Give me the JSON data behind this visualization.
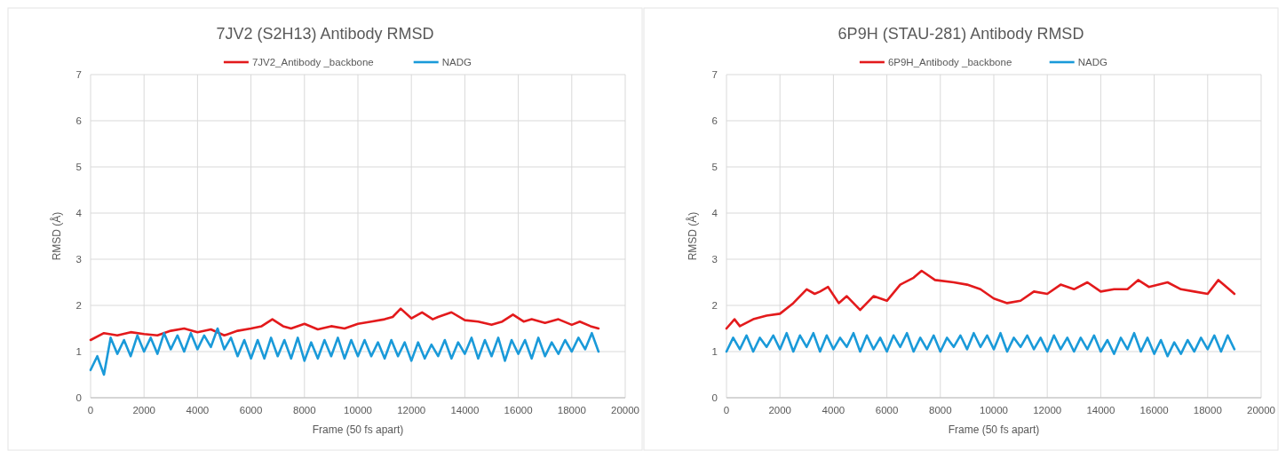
{
  "chart_data": [
    {
      "type": "line",
      "title": "7JV2 (S2H13) Antibody RMSD",
      "xlabel": "Frame (50 fs apart)",
      "ylabel": "RMSD (Å)",
      "xlim": [
        0,
        20000
      ],
      "xticks": [
        0,
        2000,
        4000,
        6000,
        8000,
        10000,
        12000,
        14000,
        16000,
        18000,
        20000
      ],
      "ylim": [
        0,
        7
      ],
      "yticks": [
        0,
        1,
        2,
        3,
        4,
        5,
        6,
        7
      ],
      "grid": true,
      "legend": "top",
      "marker": "none",
      "line_style": "solid",
      "series": [
        {
          "name": "7JV2_Antibody _backbone",
          "color": "#e31a1c",
          "x": [
            0,
            500,
            1000,
            1500,
            2000,
            2500,
            3000,
            3500,
            4000,
            4500,
            5000,
            5500,
            6000,
            6400,
            6800,
            7200,
            7500,
            8000,
            8500,
            9000,
            9500,
            10000,
            10500,
            11000,
            11300,
            11600,
            12000,
            12400,
            12800,
            13000,
            13500,
            14000,
            14500,
            15000,
            15400,
            15800,
            16200,
            16500,
            17000,
            17500,
            18000,
            18300,
            18700,
            19000
          ],
          "values": [
            1.25,
            1.4,
            1.35,
            1.42,
            1.38,
            1.35,
            1.45,
            1.5,
            1.42,
            1.48,
            1.35,
            1.45,
            1.5,
            1.55,
            1.7,
            1.55,
            1.5,
            1.6,
            1.48,
            1.55,
            1.5,
            1.6,
            1.65,
            1.7,
            1.75,
            1.93,
            1.72,
            1.85,
            1.7,
            1.75,
            1.85,
            1.68,
            1.65,
            1.58,
            1.65,
            1.8,
            1.65,
            1.7,
            1.62,
            1.7,
            1.58,
            1.65,
            1.55,
            1.5
          ]
        },
        {
          "name": "NADG",
          "color": "#1a9ad9",
          "x": [
            0,
            250,
            500,
            750,
            1000,
            1250,
            1500,
            1750,
            2000,
            2250,
            2500,
            2750,
            3000,
            3250,
            3500,
            3750,
            4000,
            4250,
            4500,
            4750,
            5000,
            5250,
            5500,
            5750,
            6000,
            6250,
            6500,
            6750,
            7000,
            7250,
            7500,
            7750,
            8000,
            8250,
            8500,
            8750,
            9000,
            9250,
            9500,
            9750,
            10000,
            10250,
            10500,
            10750,
            11000,
            11250,
            11500,
            11750,
            12000,
            12250,
            12500,
            12750,
            13000,
            13250,
            13500,
            13750,
            14000,
            14250,
            14500,
            14750,
            15000,
            15250,
            15500,
            15750,
            16000,
            16250,
            16500,
            16750,
            17000,
            17250,
            17500,
            17750,
            18000,
            18250,
            18500,
            18750,
            19000
          ],
          "values": [
            0.6,
            0.9,
            0.5,
            1.3,
            0.95,
            1.25,
            0.9,
            1.35,
            1.0,
            1.3,
            0.95,
            1.4,
            1.05,
            1.35,
            1.0,
            1.4,
            1.05,
            1.35,
            1.1,
            1.5,
            1.05,
            1.3,
            0.9,
            1.25,
            0.85,
            1.25,
            0.85,
            1.3,
            0.9,
            1.25,
            0.85,
            1.3,
            0.8,
            1.2,
            0.85,
            1.25,
            0.9,
            1.3,
            0.85,
            1.25,
            0.9,
            1.25,
            0.9,
            1.2,
            0.85,
            1.25,
            0.9,
            1.2,
            0.8,
            1.2,
            0.85,
            1.15,
            0.9,
            1.25,
            0.85,
            1.2,
            0.95,
            1.3,
            0.85,
            1.25,
            0.9,
            1.3,
            0.8,
            1.25,
            0.95,
            1.25,
            0.85,
            1.3,
            0.9,
            1.2,
            0.95,
            1.25,
            1.0,
            1.3,
            1.05,
            1.4,
            1.0
          ]
        }
      ]
    },
    {
      "type": "line",
      "title": "6P9H (STAU-281) Antibody RMSD",
      "xlabel": "Frame (50 fs apart)",
      "ylabel": "RMSD (Å)",
      "xlim": [
        0,
        20000
      ],
      "xticks": [
        0,
        2000,
        4000,
        6000,
        8000,
        10000,
        12000,
        14000,
        16000,
        18000,
        20000
      ],
      "ylim": [
        0,
        7
      ],
      "yticks": [
        0,
        1,
        2,
        3,
        4,
        5,
        6,
        7
      ],
      "grid": true,
      "legend": "top",
      "marker": "none",
      "line_style": "solid",
      "series": [
        {
          "name": "6P9H_Antibody _backbone",
          "color": "#e31a1c",
          "x": [
            0,
            300,
            500,
            1000,
            1500,
            2000,
            2500,
            3000,
            3300,
            3500,
            3800,
            4200,
            4500,
            5000,
            5500,
            6000,
            6500,
            7000,
            7300,
            7800,
            8500,
            9000,
            9500,
            10000,
            10500,
            11000,
            11500,
            12000,
            12500,
            13000,
            13500,
            14000,
            14500,
            15000,
            15400,
            15800,
            16500,
            17000,
            17500,
            18000,
            18400,
            18800,
            19000
          ],
          "values": [
            1.5,
            1.7,
            1.55,
            1.7,
            1.78,
            1.82,
            2.05,
            2.35,
            2.25,
            2.3,
            2.4,
            2.05,
            2.2,
            1.9,
            2.2,
            2.1,
            2.45,
            2.6,
            2.75,
            2.55,
            2.5,
            2.45,
            2.35,
            2.15,
            2.05,
            2.1,
            2.3,
            2.25,
            2.45,
            2.35,
            2.5,
            2.3,
            2.35,
            2.35,
            2.55,
            2.4,
            2.5,
            2.35,
            2.3,
            2.25,
            2.55,
            2.35,
            2.25
          ]
        },
        {
          "name": "NADG",
          "color": "#1a9ad9",
          "x": [
            0,
            250,
            500,
            750,
            1000,
            1250,
            1500,
            1750,
            2000,
            2250,
            2500,
            2750,
            3000,
            3250,
            3500,
            3750,
            4000,
            4250,
            4500,
            4750,
            5000,
            5250,
            5500,
            5750,
            6000,
            6250,
            6500,
            6750,
            7000,
            7250,
            7500,
            7750,
            8000,
            8250,
            8500,
            8750,
            9000,
            9250,
            9500,
            9750,
            10000,
            10250,
            10500,
            10750,
            11000,
            11250,
            11500,
            11750,
            12000,
            12250,
            12500,
            12750,
            13000,
            13250,
            13500,
            13750,
            14000,
            14250,
            14500,
            14750,
            15000,
            15250,
            15500,
            15750,
            16000,
            16250,
            16500,
            16750,
            17000,
            17250,
            17500,
            17750,
            18000,
            18250,
            18500,
            18750,
            19000
          ],
          "values": [
            1.0,
            1.3,
            1.05,
            1.35,
            1.0,
            1.3,
            1.1,
            1.35,
            1.05,
            1.4,
            1.0,
            1.35,
            1.1,
            1.4,
            1.0,
            1.35,
            1.05,
            1.3,
            1.1,
            1.4,
            1.0,
            1.35,
            1.05,
            1.3,
            1.0,
            1.35,
            1.1,
            1.4,
            1.0,
            1.3,
            1.05,
            1.35,
            1.0,
            1.3,
            1.1,
            1.35,
            1.05,
            1.4,
            1.1,
            1.35,
            1.05,
            1.4,
            1.0,
            1.3,
            1.1,
            1.35,
            1.05,
            1.3,
            1.0,
            1.35,
            1.05,
            1.3,
            1.0,
            1.3,
            1.05,
            1.35,
            1.0,
            1.25,
            0.95,
            1.3,
            1.05,
            1.4,
            1.0,
            1.3,
            0.95,
            1.25,
            0.9,
            1.2,
            0.95,
            1.25,
            1.0,
            1.3,
            1.05,
            1.35,
            1.0,
            1.35,
            1.05
          ]
        }
      ]
    }
  ]
}
